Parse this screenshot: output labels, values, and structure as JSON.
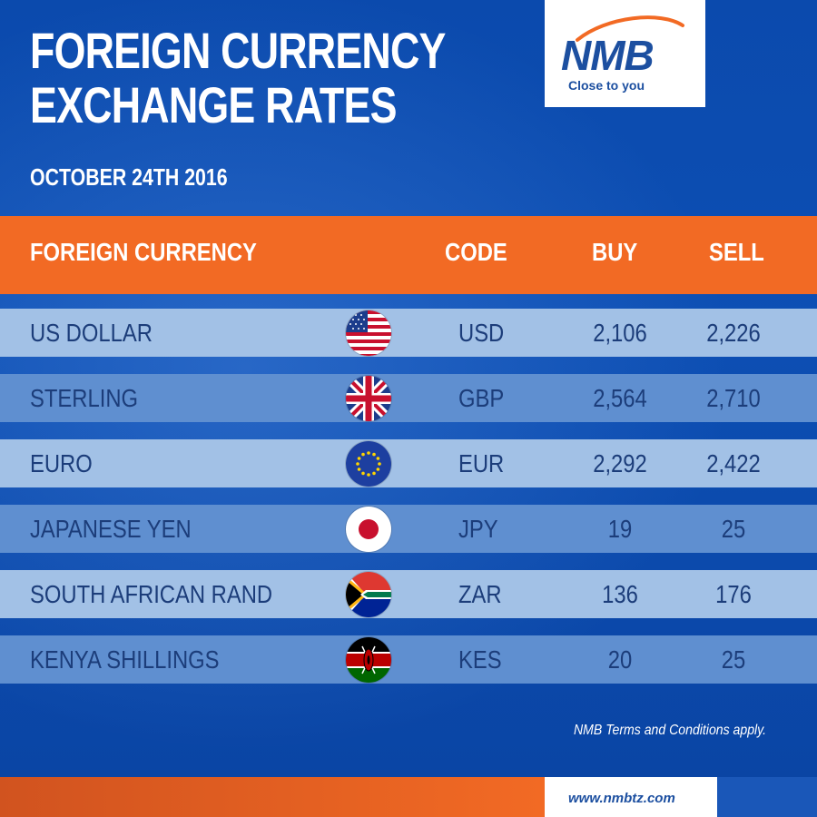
{
  "title_line1": "FOREIGN CURRENCY",
  "title_line2": "EXCHANGE RATES",
  "date": "OCTOBER 24TH 2016",
  "logo": {
    "name": "NMB",
    "tagline": "Close to you"
  },
  "table": {
    "headers": {
      "currency": "FOREIGN CURRENCY",
      "code": "CODE",
      "buy": "BUY",
      "sell": "SELL"
    },
    "rows": [
      {
        "currency": "US DOLLAR",
        "flag": "us-flag",
        "code": "USD",
        "buy": "2,106",
        "sell": "2,226"
      },
      {
        "currency": "STERLING",
        "flag": "uk-flag",
        "code": "GBP",
        "buy": "2,564",
        "sell": "2,710"
      },
      {
        "currency": "EURO",
        "flag": "eu-flag",
        "code": "EUR",
        "buy": "2,292",
        "sell": "2,422"
      },
      {
        "currency": "JAPANESE YEN",
        "flag": "japan-flag",
        "code": "JPY",
        "buy": "19",
        "sell": "25"
      },
      {
        "currency": "SOUTH AFRICAN RAND",
        "flag": "south-africa-flag",
        "code": "ZAR",
        "buy": "136",
        "sell": "176"
      },
      {
        "currency": "KENYA SHILLINGS",
        "flag": "kenya-flag",
        "code": "KES",
        "buy": "20",
        "sell": "25"
      }
    ]
  },
  "terms": "NMB Terms and Conditions apply.",
  "footer_url": "www.nmbtz.com",
  "colors": {
    "background": "#0d47a8",
    "header_orange": "#f26a24",
    "row_light": "#a2c1e6",
    "row_dark": "#5f8fd0",
    "text_dark": "#1c3d7a",
    "brand_blue": "#1c4fa0"
  }
}
